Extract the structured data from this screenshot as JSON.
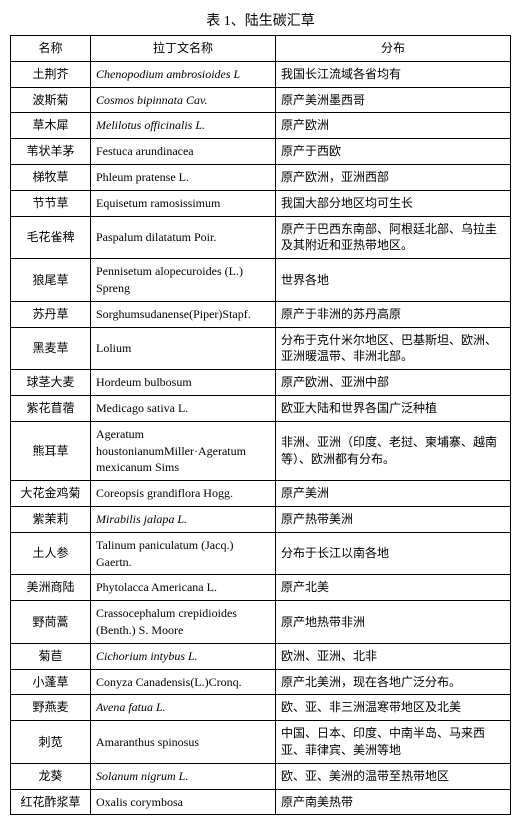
{
  "caption": "表 1、陆生碳汇草",
  "headers": {
    "name": "名称",
    "latin": "拉丁文名称",
    "dist": "分布"
  },
  "italic_flags": [
    true,
    true,
    true,
    false,
    false,
    false,
    false,
    false,
    false,
    false,
    false,
    false,
    false,
    false,
    true,
    false,
    false,
    false,
    true,
    false,
    true,
    false,
    true,
    false
  ],
  "rows": [
    {
      "name": "土荆芥",
      "latin": "Chenopodium ambrosioides L",
      "dist": "我国长江流域各省均有"
    },
    {
      "name": "波斯菊",
      "latin": "Cosmos bipinnata   Cav.",
      "dist": "原产美洲墨西哥"
    },
    {
      "name": "草木犀",
      "latin": "Melilotus officinalis L.",
      "dist": "原产欧洲"
    },
    {
      "name": "苇状羊茅",
      "latin": "Festuca arundinacea",
      "dist": "原产于西欧"
    },
    {
      "name": "梯牧草",
      "latin": "Phleum pratense L.",
      "dist": "原产欧洲，亚洲西部"
    },
    {
      "name": "节节草",
      "latin": "Equisetum ramosissimum",
      "dist": "我国大部分地区均可生长"
    },
    {
      "name": "毛花雀稗",
      "latin": "Paspalum dilatatum Poir.",
      "dist": "原产于巴西东南部、阿根廷北部、乌拉圭及其附近和亚热带地区。"
    },
    {
      "name": "狼尾草",
      "latin": "Pennisetum alopecuroides (L.) Spreng",
      "dist": "世界各地"
    },
    {
      "name": "苏丹草",
      "latin": "Sorghumsudanense(Piper)Stapf.",
      "dist": "原产于非洲的苏丹高原"
    },
    {
      "name": "黑麦草",
      "latin": "Lolium",
      "dist": "分布于克什米尔地区、巴基斯坦、欧洲、亚洲暖温带、非洲北部。"
    },
    {
      "name": "球茎大麦",
      "latin": "Hordeum bulbosum",
      "dist": "原产欧洲、亚洲中部"
    },
    {
      "name": "紫花苜蓿",
      "latin": "Medicago sativa L.",
      "dist": "欧亚大陆和世界各国广泛种植"
    },
    {
      "name": "熊耳草",
      "latin": "Ageratum houstonianumMiller·Ageratum mexicanum Sims",
      "dist": "非洲、亚洲（印度、老挝、柬埔寨、越南等）、欧洲都有分布。"
    },
    {
      "name": "大花金鸡菊",
      "latin": "Coreopsis grandiflora Hogg.",
      "dist": "原产美洲"
    },
    {
      "name": "紫茉莉",
      "latin": "Mirabilis jalapa L.",
      "dist": "原产热带美洲"
    },
    {
      "name": "土人参",
      "latin": "Talinum paniculatum (Jacq.) Gaertn.",
      "dist": "分布于长江以南各地"
    },
    {
      "name": "美洲商陆",
      "latin": "Phytolacca Americana L.",
      "dist": "原产北美"
    },
    {
      "name": "野茼蒿",
      "latin": "Crassocephalum crepidioides (Benth.) S. Moore",
      "dist": "原产地热带非洲"
    },
    {
      "name": "菊苣",
      "latin": "Cichorium intybus L.",
      "dist": "欧洲、亚洲、北非"
    },
    {
      "name": "小蓬草",
      "latin": "Conyza Canadensis(L.)Cronq.",
      "dist": "原产北美洲，现在各地广泛分布。"
    },
    {
      "name": "野燕麦",
      "latin": "Avena fatua L.",
      "dist": "欧、亚、非三洲温寒带地区及北美"
    },
    {
      "name": "刺苋",
      "latin": "Amaranthus spinosus",
      "dist": "中国、日本、印度、中南半岛、马来西亚、菲律宾、美洲等地"
    },
    {
      "name": "龙葵",
      "latin": "Solanum nigrum L.",
      "dist": "欧、亚、美洲的温带至热带地区"
    },
    {
      "name": "红花酢浆草",
      "latin": "Oxalis corymbosa",
      "dist": "原产南美热带"
    }
  ]
}
